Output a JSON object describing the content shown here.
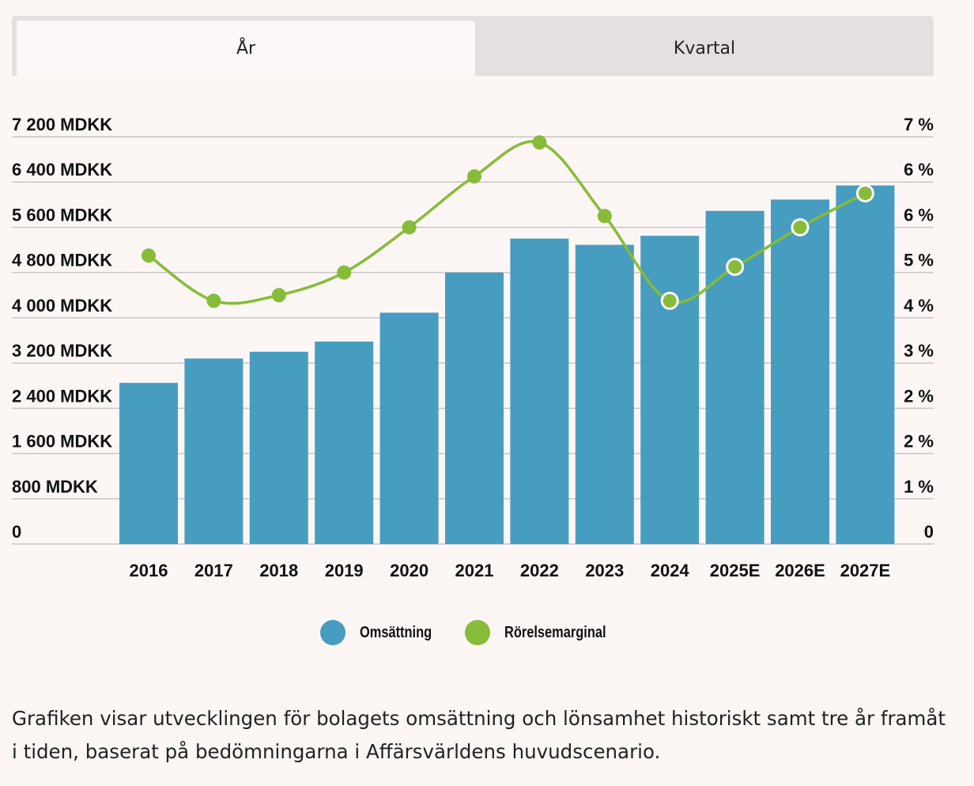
{
  "tabs": [
    {
      "label": "År",
      "active": true
    },
    {
      "label": "Kvartal",
      "active": false
    }
  ],
  "chart_data": {
    "type": "bar",
    "categories": [
      "2016",
      "2017",
      "2018",
      "2019",
      "2020",
      "2021",
      "2022",
      "2023",
      "2024",
      "2025E",
      "2026E",
      "2027E"
    ],
    "series": [
      {
        "name": "Omsättning",
        "type": "bar",
        "axis": "left",
        "color": "#469dc0",
        "values": [
          2850,
          3280,
          3400,
          3580,
          4090,
          4800,
          5400,
          5290,
          5450,
          5890,
          6090,
          6340
        ]
      },
      {
        "name": "Rörelsemarginal",
        "type": "line",
        "axis": "right",
        "color": "#86bc37",
        "values": [
          5.1,
          4.3,
          4.4,
          4.8,
          5.6,
          6.5,
          7.1,
          5.8,
          4.3,
          4.9,
          5.6,
          6.2
        ]
      }
    ],
    "y_left": {
      "min": 0,
      "max": 7200,
      "ticks": [
        0,
        800,
        1600,
        2400,
        3200,
        4000,
        4800,
        5600,
        6400,
        7200
      ],
      "tick_labels": [
        "0",
        "800 MDKK",
        "1 600 MDKK",
        "2 400 MDKK",
        "3 200 MDKK",
        "4 000 MDKK",
        "4 800 MDKK",
        "5 600 MDKK",
        "6 400 MDKK",
        "7 200 MDKK"
      ]
    },
    "y_right": {
      "min": 0,
      "max": 7.2,
      "tick_labels": [
        "0",
        "1 %",
        "2 %",
        "2 %",
        "3 %",
        "4 %",
        "5 %",
        "6 %",
        "6 %",
        "7 %"
      ]
    },
    "grid": true,
    "legend_position": "bottom-center"
  },
  "legend": [
    {
      "label": "Omsättning",
      "color": "#469dc0"
    },
    {
      "label": "Rörelsemarginal",
      "color": "#86bc37"
    }
  ],
  "caption": "Grafiken visar utvecklingen för bolagets omsättning och lönsamhet historiskt samt tre år framåt i tiden, baserat på bedömningarna i Affärsvärldens huvudscenario."
}
